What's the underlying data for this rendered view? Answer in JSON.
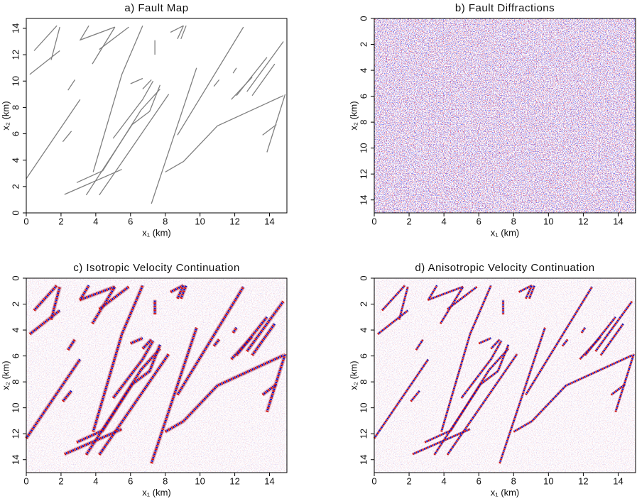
{
  "chart_data": [
    {
      "type": "line",
      "title": "a) Fault Map",
      "xlabel": "x₁ (km)",
      "ylabel": "x₂ (km)",
      "color": "#808080",
      "xlim": [
        0,
        15
      ],
      "ylim": [
        0,
        14.75
      ],
      "xticks": [
        0,
        2,
        4,
        6,
        8,
        10,
        12,
        14
      ],
      "yticks": [
        0,
        2,
        4,
        6,
        8,
        10,
        12,
        14
      ],
      "y_inverted": false,
      "series": [
        {
          "x": [
            0.45,
            1.76
          ],
          "values": [
            12.3,
            14.2
          ]
        },
        {
          "x": [
            0.2,
            1.93
          ],
          "values": [
            10.5,
            12.3
          ]
        },
        {
          "x": [
            1.43,
            1.93
          ],
          "values": [
            11.6,
            14.1
          ]
        },
        {
          "x": [
            0,
            3.1
          ],
          "values": [
            2.6,
            8.6
          ]
        },
        {
          "x": [
            2.1,
            2.6
          ],
          "values": [
            5.4,
            6.2
          ]
        },
        {
          "x": [
            2.4,
            2.8
          ],
          "values": [
            9.3,
            10.1
          ]
        },
        {
          "x": [
            3.07,
            5.1
          ],
          "values": [
            13.1,
            14.1
          ]
        },
        {
          "x": [
            3.8,
            5.1
          ],
          "values": [
            11.3,
            14.1
          ]
        },
        {
          "x": [
            3.1,
            3.6
          ],
          "values": [
            13.1,
            14.2
          ]
        },
        {
          "x": [
            4.2,
            5.9
          ],
          "values": [
            12.4,
            14.1
          ]
        },
        {
          "x": [
            3.85,
            5.5,
            6.7
          ],
          "values": [
            3.1,
            10.5,
            14.2
          ]
        },
        {
          "x": [
            2.9,
            4.4,
            6.6,
            7.7
          ],
          "values": [
            2.3,
            3.2,
            7.8,
            9.4
          ]
        },
        {
          "x": [
            2.2,
            5.5
          ],
          "values": [
            1.4,
            3.3
          ]
        },
        {
          "x": [
            3.45,
            6.1,
            7.1,
            7.7
          ],
          "values": [
            1.35,
            6.7,
            7.7,
            9.7
          ]
        },
        {
          "x": [
            5.0,
            6.7,
            7.3
          ],
          "values": [
            5.65,
            8.6,
            10.0
          ]
        },
        {
          "x": [
            4.2,
            8.2
          ],
          "values": [
            1.35,
            9.0
          ]
        },
        {
          "x": [
            6.0,
            6.7
          ],
          "values": [
            9.8,
            10.2
          ]
        },
        {
          "x": [
            6.7,
            7.2
          ],
          "values": [
            9.4,
            10.1
          ]
        },
        {
          "x": [
            7.4,
            7.4
          ],
          "values": [
            12.0,
            13.1
          ]
        },
        {
          "x": [
            7.2,
            9.8
          ],
          "values": [
            0.7,
            11.0
          ]
        },
        {
          "x": [
            8.7,
            12.5
          ],
          "values": [
            5.9,
            14.1
          ]
        },
        {
          "x": [
            8.0,
            9.05,
            11.0,
            14.8
          ],
          "values": [
            3.1,
            3.9,
            6.6,
            8.9
          ]
        },
        {
          "x": [
            8.3,
            9.05
          ],
          "values": [
            13.7,
            14.2
          ]
        },
        {
          "x": [
            8.7,
            9.05
          ],
          "values": [
            13.2,
            14.2
          ]
        },
        {
          "x": [
            8.9,
            9.2
          ],
          "values": [
            13.2,
            14.2
          ]
        },
        {
          "x": [
            10.8,
            11.1
          ],
          "values": [
            9.6,
            10.1
          ]
        },
        {
          "x": [
            11.9,
            12.1
          ],
          "values": [
            10.6,
            11.0
          ]
        },
        {
          "x": [
            11.8,
            13.0
          ],
          "values": [
            8.6,
            10.3
          ]
        },
        {
          "x": [
            12.1,
            13.85
          ],
          "values": [
            8.9,
            11.8
          ]
        },
        {
          "x": [
            13.0,
            14.3
          ],
          "values": [
            8.9,
            11.3
          ]
        },
        {
          "x": [
            12.7,
            14.8
          ],
          "values": [
            9.2,
            13.0
          ]
        },
        {
          "x": [
            13.6,
            14.4
          ],
          "values": [
            5.9,
            6.7
          ]
        },
        {
          "x": [
            13.85,
            14.9
          ],
          "values": [
            4.6,
            9.0
          ]
        }
      ]
    },
    {
      "type": "image",
      "title": "b) Fault Diffractions",
      "xlabel": "x₁ (km)",
      "ylabel": "x₂ (km)",
      "xlim": [
        0,
        15
      ],
      "ylim": [
        0,
        15
      ],
      "xticks": [
        0,
        2,
        4,
        6,
        8,
        10,
        12,
        14
      ],
      "yticks": [
        0,
        2,
        4,
        6,
        8,
        10,
        12,
        14
      ],
      "y_inverted": true
    },
    {
      "type": "image",
      "title": "c) Isotropic Velocity Continuation",
      "xlabel": "x₁ (km)",
      "ylabel": "x₂ (km)",
      "xlim": [
        0,
        15
      ],
      "ylim": [
        0,
        15
      ],
      "xticks": [
        0,
        2,
        4,
        6,
        8,
        10,
        12,
        14
      ],
      "yticks": [
        0,
        2,
        4,
        6,
        8,
        10,
        12,
        14
      ],
      "y_inverted": true
    },
    {
      "type": "image",
      "title": "d) Anisotropic Velocity Continuation",
      "xlabel": "x₁ (km)",
      "ylabel": "x₂ (km)",
      "xlim": [
        0,
        15
      ],
      "ylim": [
        0,
        15
      ],
      "xticks": [
        0,
        2,
        4,
        6,
        8,
        10,
        12,
        14
      ],
      "yticks": [
        0,
        2,
        4,
        6,
        8,
        10,
        12,
        14
      ],
      "y_inverted": true
    }
  ]
}
